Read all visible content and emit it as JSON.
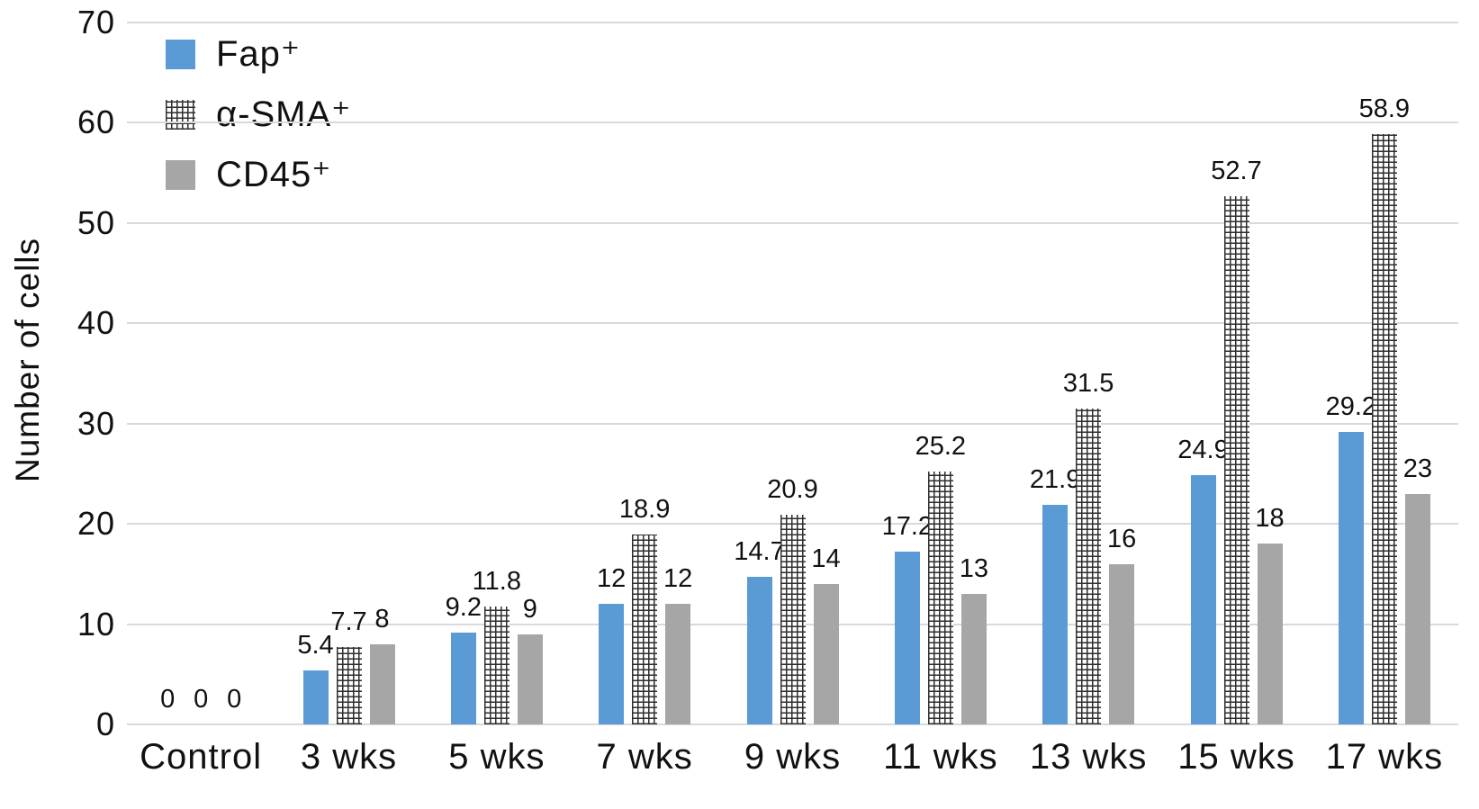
{
  "chart_data": {
    "type": "bar",
    "title": "",
    "ylabel": "Number of cells",
    "xlabel": "",
    "categories": [
      "Control",
      "3 wks",
      "5 wks",
      "7 wks",
      "9 wks",
      "11 wks",
      "13 wks",
      "15 wks",
      "17 wks"
    ],
    "series": [
      {
        "key": "fap",
        "name": "Fap⁺",
        "fill": "solid",
        "color": "#5B9BD5",
        "values": [
          0,
          5.4,
          9.2,
          12,
          14.7,
          17.2,
          21.9,
          24.9,
          29.2
        ]
      },
      {
        "key": "asma",
        "name": "α-SMA⁺",
        "fill": "pattern-small-grid",
        "color": "#FFFFFF",
        "pattern_line_color": "#2E2E2E",
        "values": [
          0,
          7.7,
          11.8,
          18.9,
          20.9,
          25.2,
          31.5,
          52.7,
          58.9
        ]
      },
      {
        "key": "cd45",
        "name": "CD45⁺",
        "fill": "solid",
        "color": "#A6A6A6",
        "values": [
          0,
          8,
          9,
          12,
          14,
          13,
          16,
          18,
          23
        ]
      }
    ],
    "ylim": [
      0,
      70
    ],
    "yticks": [
      0,
      10,
      20,
      30,
      40,
      50,
      60,
      70
    ],
    "grid": true,
    "gridline_color": "#D9D9D9",
    "data_labels": true,
    "legend_position": "top-left",
    "text_color": "#111111"
  }
}
